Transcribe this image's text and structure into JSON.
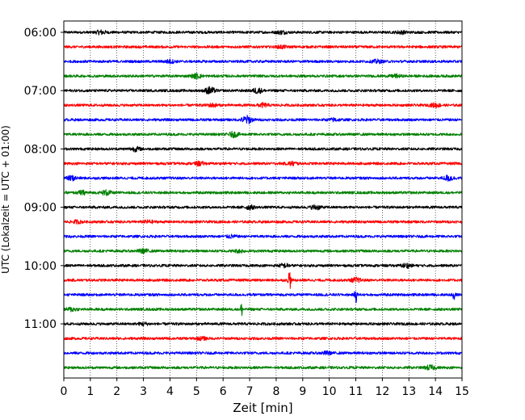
{
  "chart_data": {
    "type": "line",
    "chart_kind": "helicorder",
    "xlabel": "Zeit  [min]",
    "ylabel": "UTC (Lokalzeit = UTC + 01:00)",
    "x_range": [
      0,
      15
    ],
    "x_ticks": [
      0,
      1,
      2,
      3,
      4,
      5,
      6,
      7,
      8,
      9,
      10,
      11,
      12,
      13,
      14,
      15
    ],
    "x_tick_labels": [
      "0",
      "1",
      "2",
      "3",
      "4",
      "5",
      "6",
      "7",
      "8",
      "9",
      "10",
      "11",
      "12",
      "13",
      "14",
      "15"
    ],
    "y_tick_labels": [
      "06:00",
      "07:00",
      "08:00",
      "09:00",
      "10:00",
      "11:00"
    ],
    "y_tick_rows": [
      0,
      4,
      8,
      12,
      16,
      20
    ],
    "grid": "vertical dotted at each minute",
    "color_cycle": [
      "#000000",
      "#ff0000",
      "#0000ff",
      "#008000"
    ],
    "traces": [
      {
        "events": [
          {
            "t": 1.4,
            "a": 0.45
          },
          {
            "t": 8.2,
            "a": 0.35
          },
          {
            "t": 12.7,
            "a": 0.3
          }
        ]
      },
      {
        "events": [
          {
            "t": 8.2,
            "a": 0.3
          }
        ]
      },
      {
        "events": [
          {
            "t": 4.0,
            "a": 0.35
          },
          {
            "t": 11.8,
            "a": 0.35
          }
        ]
      },
      {
        "events": [
          {
            "t": 5.0,
            "a": 0.5
          },
          {
            "t": 12.5,
            "a": 0.3
          }
        ]
      },
      {
        "events": [
          {
            "t": 5.5,
            "a": 0.8
          },
          {
            "t": 7.3,
            "a": 0.6
          }
        ]
      },
      {
        "events": [
          {
            "t": 5.6,
            "a": 0.35
          },
          {
            "t": 7.5,
            "a": 0.4
          },
          {
            "t": 14.0,
            "a": 0.45
          }
        ]
      },
      {
        "events": [
          {
            "t": 6.9,
            "a": 0.9
          },
          {
            "t": 10.2,
            "a": 0.3
          }
        ]
      },
      {
        "events": [
          {
            "t": 6.4,
            "a": 0.55
          }
        ]
      },
      {
        "events": [
          {
            "t": 2.7,
            "a": 0.45
          }
        ]
      },
      {
        "events": [
          {
            "t": 5.1,
            "a": 0.4
          },
          {
            "t": 8.6,
            "a": 0.4
          }
        ]
      },
      {
        "events": [
          {
            "t": 0.3,
            "a": 0.5
          },
          {
            "t": 14.5,
            "a": 0.6
          }
        ]
      },
      {
        "events": [
          {
            "t": 0.7,
            "a": 0.4
          },
          {
            "t": 1.6,
            "a": 0.55
          }
        ]
      },
      {
        "events": [
          {
            "t": 7.0,
            "a": 0.4
          },
          {
            "t": 9.5,
            "a": 0.5
          }
        ]
      },
      {
        "events": [
          {
            "t": 0.5,
            "a": 0.3
          },
          {
            "t": 3.2,
            "a": 0.3
          }
        ]
      },
      {
        "events": [
          {
            "t": 6.3,
            "a": 0.3
          }
        ]
      },
      {
        "events": [
          {
            "t": 3.0,
            "a": 0.45
          },
          {
            "t": 6.6,
            "a": 0.3
          }
        ]
      },
      {
        "events": [
          {
            "t": 8.3,
            "a": 0.4
          },
          {
            "t": 12.9,
            "a": 0.45
          }
        ]
      },
      {
        "events": [
          {
            "t": 8.5,
            "a": 2.8
          },
          {
            "t": 11.0,
            "a": 0.5
          }
        ]
      },
      {
        "events": [
          {
            "t": 11.0,
            "a": 1.9
          },
          {
            "t": 14.7,
            "a": 1.9
          }
        ]
      },
      {
        "events": [
          {
            "t": 0.3,
            "a": 0.4
          },
          {
            "t": 6.7,
            "a": 1.6
          }
        ]
      },
      {
        "events": [
          {
            "t": 3.0,
            "a": 0.3
          }
        ]
      },
      {
        "events": [
          {
            "t": 5.2,
            "a": 0.3
          }
        ]
      },
      {
        "events": [
          {
            "t": 9.9,
            "a": 0.3
          }
        ]
      },
      {
        "events": [
          {
            "t": 13.8,
            "a": 0.5
          }
        ]
      }
    ]
  }
}
